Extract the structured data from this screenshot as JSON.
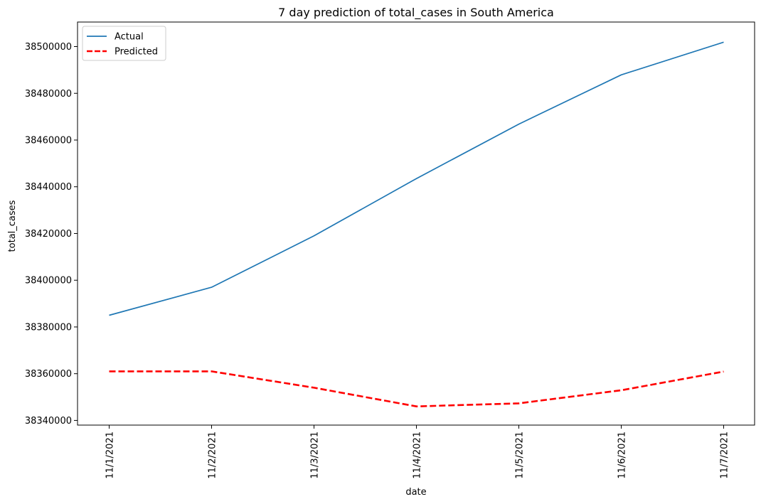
{
  "chart_data": {
    "type": "line",
    "title": "7 day prediction of total_cases in South America",
    "xlabel": "date",
    "ylabel": "total_cases",
    "categories": [
      "11/1/2021",
      "11/2/2021",
      "11/3/2021",
      "11/4/2021",
      "11/5/2021",
      "11/6/2021",
      "11/7/2021"
    ],
    "ylim": [
      38338000,
      38510500
    ],
    "yticks": [
      38340000,
      38360000,
      38380000,
      38400000,
      38420000,
      38440000,
      38460000,
      38480000,
      38500000
    ],
    "grid": false,
    "legend_position": "top-left",
    "series": [
      {
        "name": "Actual",
        "color": "#1f77b4",
        "style": "solid",
        "values": [
          38385000,
          38397000,
          38419000,
          38443500,
          38466800,
          38487900,
          38501900
        ]
      },
      {
        "name": "Predicted",
        "color": "#ff0000",
        "style": "dashed",
        "values": [
          38361000,
          38361000,
          38354000,
          38346000,
          38347300,
          38352900,
          38360900
        ]
      }
    ]
  }
}
